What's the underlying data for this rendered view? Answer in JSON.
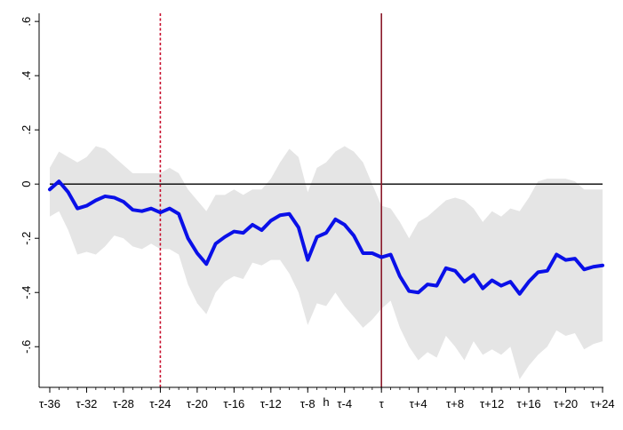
{
  "chart_data": {
    "type": "line",
    "title": "",
    "xlabel": "h",
    "ylabel": "",
    "xlim": [
      -36,
      24
    ],
    "ylim": [
      -0.75,
      0.63
    ],
    "grid": false,
    "legend": "none",
    "x_ticks": [
      {
        "value": -36,
        "label": "τ-36"
      },
      {
        "value": -32,
        "label": "τ-32"
      },
      {
        "value": -28,
        "label": "τ-28"
      },
      {
        "value": -24,
        "label": "τ-24"
      },
      {
        "value": -20,
        "label": "τ-20"
      },
      {
        "value": -16,
        "label": "τ-16"
      },
      {
        "value": -12,
        "label": "τ-12"
      },
      {
        "value": -8,
        "label": "τ-8"
      },
      {
        "value": -4,
        "label": "τ-4"
      },
      {
        "value": 0,
        "label": "τ"
      },
      {
        "value": 4,
        "label": "τ+4"
      },
      {
        "value": 8,
        "label": "τ+8"
      },
      {
        "value": 12,
        "label": "τ+12"
      },
      {
        "value": 16,
        "label": "τ+16"
      },
      {
        "value": 20,
        "label": "τ+20"
      },
      {
        "value": 24,
        "label": "τ+24"
      }
    ],
    "y_ticks": [
      {
        "value": -0.6,
        "label": "-.6"
      },
      {
        "value": -0.4,
        "label": "-.4"
      },
      {
        "value": -0.2,
        "label": "-.2"
      },
      {
        "value": 0,
        "label": "0"
      },
      {
        "value": 0.2,
        "label": ".2"
      },
      {
        "value": 0.4,
        "label": ".4"
      },
      {
        "value": 0.6,
        "label": ".6"
      }
    ],
    "reference_lines": [
      {
        "axis": "y",
        "value": 0,
        "style": "solid",
        "color": "#000000"
      },
      {
        "axis": "x",
        "value": -24,
        "style": "dashed",
        "color": "#c8102e"
      },
      {
        "axis": "x",
        "value": 0,
        "style": "solid",
        "color": "#8b1a2b"
      }
    ],
    "series": [
      {
        "color": "#0a10e8",
        "x": [
          -36,
          -35,
          -34,
          -33,
          -32,
          -31,
          -30,
          -29,
          -28,
          -27,
          -26,
          -25,
          -24,
          -23,
          -22,
          -21,
          -20,
          -19,
          -18,
          -17,
          -16,
          -15,
          -14,
          -13,
          -12,
          -11,
          -10,
          -9,
          -8,
          -7,
          -6,
          -5,
          -4,
          -3,
          -2,
          -1,
          0,
          1,
          2,
          3,
          4,
          5,
          6,
          7,
          8,
          9,
          10,
          11,
          12,
          13,
          14,
          15,
          16,
          17,
          18,
          19,
          20,
          21,
          22,
          23,
          24
        ],
        "values": [
          -0.02,
          0.01,
          -0.03,
          -0.09,
          -0.08,
          -0.06,
          -0.045,
          -0.05,
          -0.065,
          -0.095,
          -0.1,
          -0.09,
          -0.105,
          -0.09,
          -0.11,
          -0.2,
          -0.255,
          -0.295,
          -0.22,
          -0.195,
          -0.175,
          -0.18,
          -0.15,
          -0.17,
          -0.135,
          -0.115,
          -0.11,
          -0.16,
          -0.28,
          -0.195,
          -0.18,
          -0.13,
          -0.15,
          -0.19,
          -0.255,
          -0.255,
          -0.27,
          -0.26,
          -0.34,
          -0.395,
          -0.4,
          -0.37,
          -0.375,
          -0.31,
          -0.32,
          -0.36,
          -0.335,
          -0.385,
          -0.355,
          -0.375,
          -0.36,
          -0.405,
          -0.36,
          -0.325,
          -0.32,
          -0.26,
          -0.28,
          -0.275,
          -0.315,
          -0.305,
          -0.3
        ]
      }
    ],
    "confidence_band": {
      "color": "#e5e5e5",
      "upper": [
        0.06,
        0.12,
        0.1,
        0.08,
        0.1,
        0.14,
        0.13,
        0.1,
        0.07,
        0.04,
        0.04,
        0.04,
        0.04,
        0.06,
        0.04,
        -0.02,
        -0.06,
        -0.1,
        -0.04,
        -0.04,
        -0.02,
        -0.04,
        -0.02,
        -0.02,
        0.02,
        0.08,
        0.13,
        0.1,
        -0.03,
        0.06,
        0.08,
        0.12,
        0.14,
        0.12,
        0.08,
        0.0,
        -0.08,
        -0.09,
        -0.14,
        -0.2,
        -0.14,
        -0.12,
        -0.09,
        -0.06,
        -0.05,
        -0.06,
        -0.09,
        -0.14,
        -0.1,
        -0.12,
        -0.09,
        -0.1,
        -0.05,
        0.01,
        0.02,
        0.02,
        0.02,
        0.01,
        -0.02,
        -0.02,
        -0.02
      ],
      "lower": [
        -0.12,
        -0.1,
        -0.17,
        -0.26,
        -0.25,
        -0.26,
        -0.23,
        -0.19,
        -0.2,
        -0.23,
        -0.24,
        -0.22,
        -0.24,
        -0.24,
        -0.26,
        -0.37,
        -0.44,
        -0.48,
        -0.4,
        -0.36,
        -0.34,
        -0.35,
        -0.29,
        -0.3,
        -0.28,
        -0.28,
        -0.33,
        -0.4,
        -0.52,
        -0.44,
        -0.45,
        -0.4,
        -0.45,
        -0.49,
        -0.53,
        -0.5,
        -0.46,
        -0.43,
        -0.53,
        -0.6,
        -0.65,
        -0.62,
        -0.64,
        -0.56,
        -0.6,
        -0.65,
        -0.58,
        -0.63,
        -0.61,
        -0.63,
        -0.6,
        -0.72,
        -0.67,
        -0.63,
        -0.6,
        -0.54,
        -0.56,
        -0.55,
        -0.61,
        -0.59,
        -0.58
      ]
    }
  }
}
